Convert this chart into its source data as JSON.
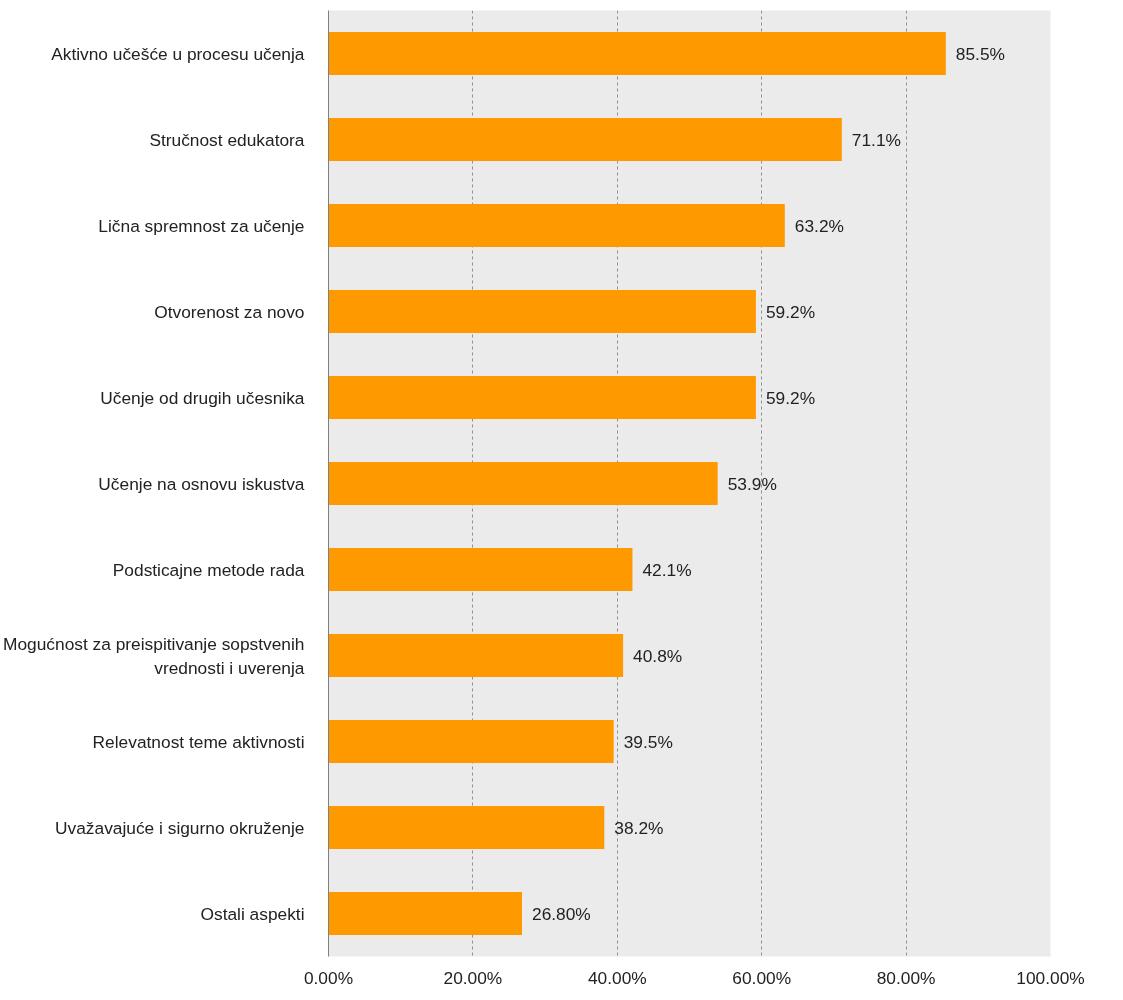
{
  "chart_data": {
    "type": "bar",
    "orientation": "horizontal",
    "categories": [
      "Aktivno učešće u procesu učenja",
      "Stručnost edukatora",
      "Lična spremnost za učenje",
      "Otvorenost za novo",
      "Učenje od drugih učesnika",
      "Učenje na osnovu iskustva",
      "Podsticajne metode rada",
      "Mogućnost za preispitivanje sopstvenih vrednosti i uverenja",
      "Relevatnost teme aktivnosti",
      "Uvažavajuće i sigurno okruženje",
      "Ostali aspekti"
    ],
    "values": [
      85.5,
      71.1,
      63.2,
      59.2,
      59.2,
      53.9,
      42.1,
      40.8,
      39.5,
      38.2,
      26.8
    ],
    "value_labels": [
      "85.5%",
      "71.1%",
      "63.2%",
      "59.2%",
      "59.2%",
      "53.9%",
      "42.1%",
      "40.8%",
      "39.5%",
      "38.2%",
      "26.80%"
    ],
    "color": "#ff9900",
    "xlim": [
      0,
      100
    ],
    "xticks": [
      {
        "value": 0,
        "label": "0.00%"
      },
      {
        "value": 20,
        "label": "20.00%"
      },
      {
        "value": 40,
        "label": "40.00%"
      },
      {
        "value": 60,
        "label": "60.00%"
      },
      {
        "value": 80,
        "label": "80.00%"
      },
      {
        "value": 100,
        "label": "100.00%"
      }
    ],
    "grid": "x"
  }
}
